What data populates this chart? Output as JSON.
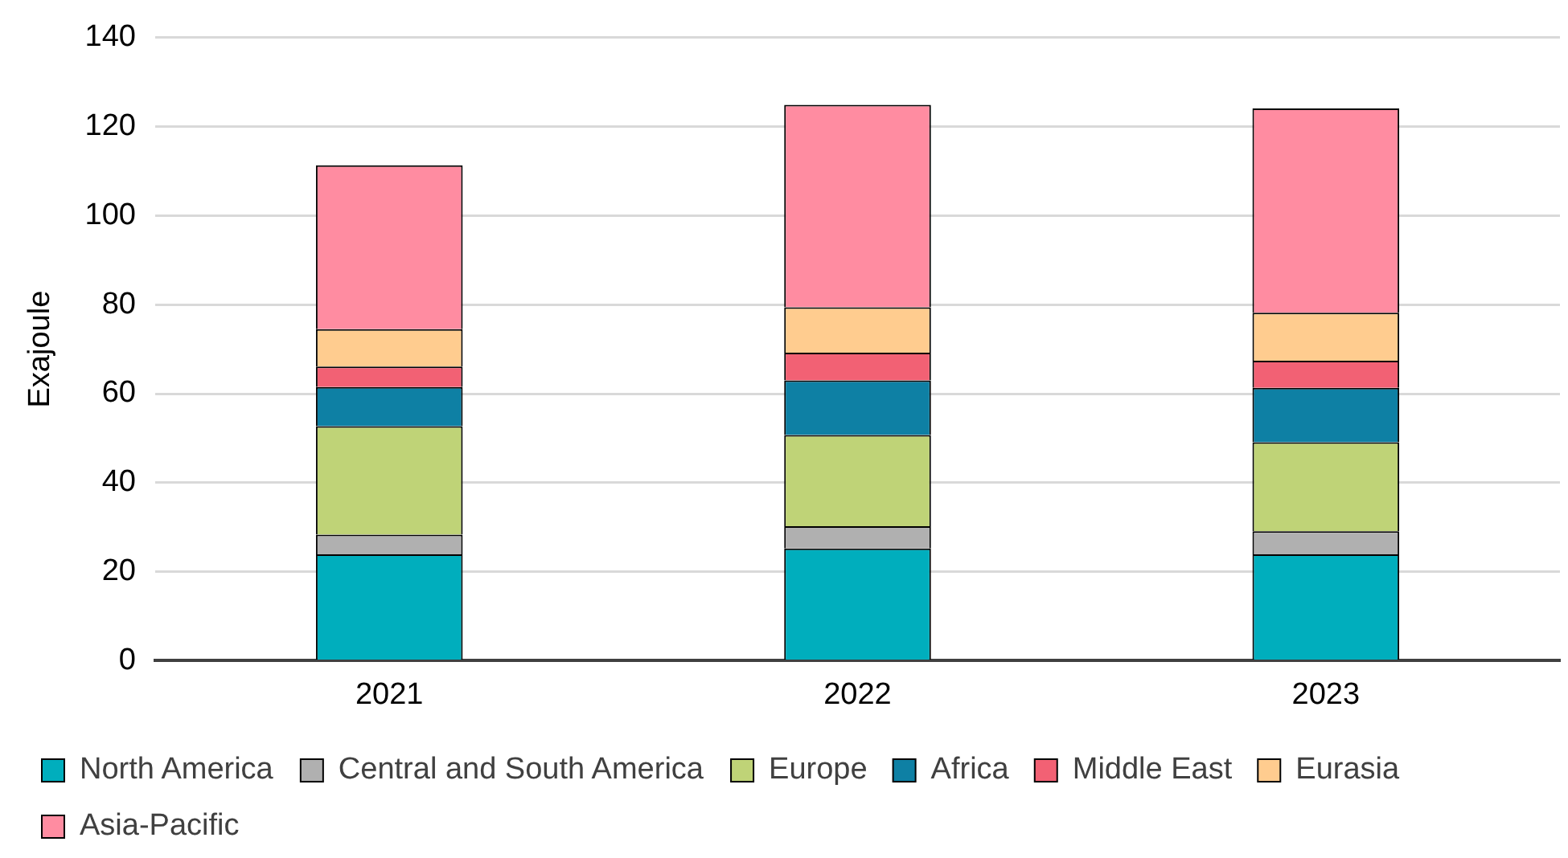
{
  "chart_data": {
    "type": "bar",
    "ylabel": "Exajoule",
    "categories": [
      "2021",
      "2022",
      "2023"
    ],
    "stacked": true,
    "series": [
      {
        "name": "North America",
        "color": "#00aebd",
        "values": [
          23.9,
          25.2,
          23.9
        ]
      },
      {
        "name": "Central and South America",
        "color": "#b0b0b0",
        "values": [
          4.4,
          5.0,
          5.2
        ]
      },
      {
        "name": "Europe",
        "color": "#bfd377",
        "values": [
          24.4,
          20.5,
          20.0
        ]
      },
      {
        "name": "Africa",
        "color": "#0e80a4",
        "values": [
          8.8,
          12.3,
          12.2
        ]
      },
      {
        "name": "Middle East",
        "color": "#f26174",
        "values": [
          4.6,
          6.2,
          6.1
        ]
      },
      {
        "name": "Eurasia",
        "color": "#ffcc8f",
        "values": [
          8.4,
          10.2,
          10.8
        ]
      },
      {
        "name": "Asia-Pacific",
        "color": "#ff8ca1",
        "values": [
          36.8,
          45.5,
          45.9
        ]
      }
    ],
    "ylim": [
      0,
      140
    ],
    "yticks": [
      0,
      20,
      40,
      60,
      80,
      100,
      120,
      140
    ],
    "grid": "y",
    "legend": "bottom"
  }
}
